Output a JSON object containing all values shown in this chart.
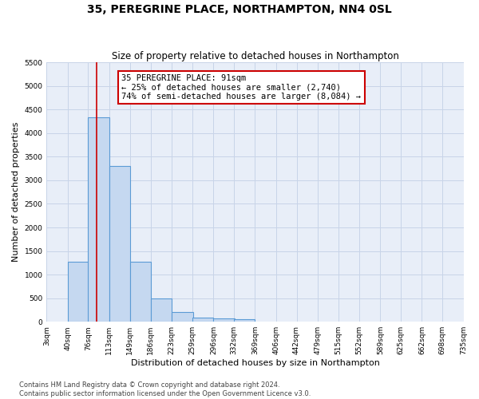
{
  "title": "35, PEREGRINE PLACE, NORTHAMPTON, NN4 0SL",
  "subtitle": "Size of property relative to detached houses in Northampton",
  "xlabel": "Distribution of detached houses by size in Northampton",
  "ylabel": "Number of detached properties",
  "footer_line1": "Contains HM Land Registry data © Crown copyright and database right 2024.",
  "footer_line2": "Contains public sector information licensed under the Open Government Licence v3.0.",
  "bar_left_edges": [
    3,
    40,
    76,
    113,
    149,
    186,
    223,
    259,
    296,
    332,
    369,
    406,
    442,
    479,
    515,
    552,
    589,
    625,
    662,
    698
  ],
  "bar_heights": [
    0,
    1270,
    4340,
    3300,
    1280,
    490,
    215,
    90,
    70,
    60,
    0,
    0,
    0,
    0,
    0,
    0,
    0,
    0,
    0,
    0
  ],
  "bin_width": 37,
  "bar_color": "#c5d8f0",
  "bar_edge_color": "#5b9bd5",
  "grid_color": "#c8d4e8",
  "annotation_line1": "35 PEREGRINE PLACE: 91sqm",
  "annotation_line2": "← 25% of detached houses are smaller (2,740)",
  "annotation_line3": "74% of semi-detached houses are larger (8,084) →",
  "red_line_x": 91,
  "red_line_color": "#cc0000",
  "annotation_box_facecolor": "#ffffff",
  "annotation_box_edgecolor": "#cc0000",
  "xlim_min": 3,
  "xlim_max": 735,
  "ylim_min": 0,
  "ylim_max": 5500,
  "yticks": [
    0,
    500,
    1000,
    1500,
    2000,
    2500,
    3000,
    3500,
    4000,
    4500,
    5000,
    5500
  ],
  "xtick_labels": [
    "3sqm",
    "40sqm",
    "76sqm",
    "113sqm",
    "149sqm",
    "186sqm",
    "223sqm",
    "259sqm",
    "296sqm",
    "332sqm",
    "369sqm",
    "406sqm",
    "442sqm",
    "479sqm",
    "515sqm",
    "552sqm",
    "589sqm",
    "625sqm",
    "662sqm",
    "698sqm",
    "735sqm"
  ],
  "xtick_positions": [
    3,
    40,
    76,
    113,
    149,
    186,
    223,
    259,
    296,
    332,
    369,
    406,
    442,
    479,
    515,
    552,
    589,
    625,
    662,
    698,
    735
  ],
  "bg_color": "#e8eef8",
  "title_fontsize": 10,
  "subtitle_fontsize": 8.5,
  "axis_label_fontsize": 8,
  "tick_fontsize": 6.5,
  "footer_fontsize": 6,
  "annotation_fontsize": 7.5
}
